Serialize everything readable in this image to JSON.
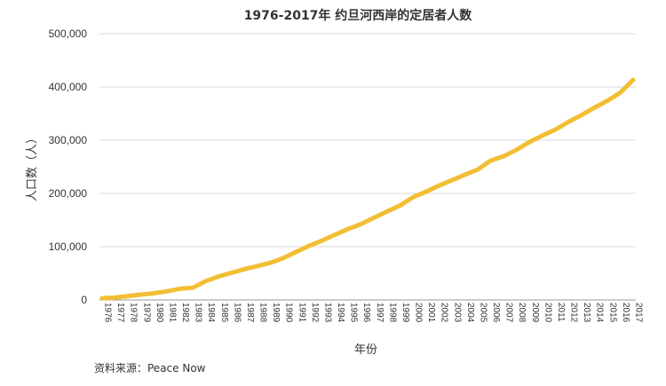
{
  "chart_data": {
    "type": "line",
    "title": "1976-2017年 约旦河西岸的定居者人数",
    "xlabel": "年份",
    "ylabel": "人口数（人）",
    "ylim": [
      0,
      500000
    ],
    "yticks": [
      0,
      100000,
      200000,
      300000,
      400000,
      500000
    ],
    "ytick_labels": [
      "0",
      "100,000",
      "200,000",
      "300,000",
      "400,000",
      "500,000"
    ],
    "grid": "horizontal",
    "line_color": "#F2BE33",
    "x": [
      "1976",
      "1977",
      "1978",
      "1979",
      "1980",
      "1981",
      "1982",
      "1983",
      "1984",
      "1985",
      "1986",
      "1987",
      "1988",
      "1989",
      "1990",
      "1991",
      "1992",
      "1993",
      "1994",
      "1995",
      "1996",
      "1997",
      "1998",
      "1999",
      "2000",
      "2001",
      "2002",
      "2003",
      "2004",
      "2005",
      "2006",
      "2007",
      "2008",
      "2009",
      "2010",
      "2011",
      "2012",
      "2013",
      "2014",
      "2015",
      "2016",
      "2017"
    ],
    "series": [
      {
        "values": [
          3200,
          4400,
          7400,
          10000,
          12500,
          16200,
          21000,
          22800,
          35300,
          44100,
          51000,
          57900,
          63600,
          69800,
          78600,
          90300,
          101800,
          111600,
          122700,
          133200,
          142700,
          154400,
          166100,
          177400,
          192800,
          203100,
          214700,
          224700,
          235200,
          244800,
          261600,
          269900,
          281800,
          296700,
          308800,
          320000,
          334400,
          347000,
          360900,
          374000,
          389200,
          413400
        ]
      }
    ]
  },
  "source": "资料来源：Peace Now"
}
